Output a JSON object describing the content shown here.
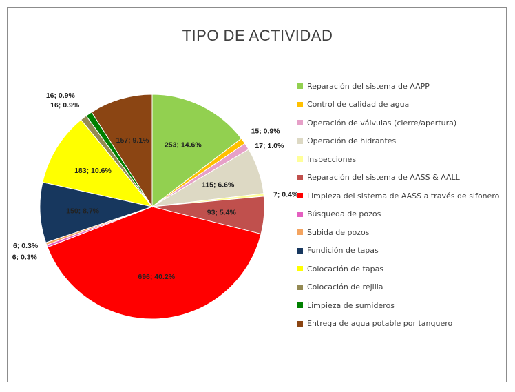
{
  "chart_data": {
    "type": "pie",
    "title": "TIPO DE ACTIVIDAD",
    "categories": [
      "Reparación del sistema de AAPP",
      "Control de calidad de agua",
      "Operación de válvulas (cierre/apertura)",
      "Operación de hidrantes",
      "Inspecciones",
      "Reparación del sistema de AASS & AALL",
      "Limpieza del sistema de AASS a través de sifonero",
      "Búsqueda de pozos",
      "Subida de pozos",
      "Fundición de tapas",
      "Colocación de tapas",
      "Colocación de rejilla",
      "Limpieza de sumideros",
      "Entrega de agua potable por tanquero"
    ],
    "values": [
      253,
      15,
      17,
      115,
      7,
      93,
      696,
      6,
      6,
      150,
      183,
      16,
      16,
      157
    ],
    "data_labels": [
      "253; 14.6%",
      "15; 0.9%",
      "17; 1.0%",
      "115; 6.6%",
      "7; 0.4%",
      "93; 5.4%",
      "696; 40.2%",
      "6; 0.3%",
      "6; 0.3%",
      "150; 8.7%",
      "183; 10.6%",
      "16; 0.9%",
      "16; 0.9%",
      "157; 9.1%"
    ],
    "colors": [
      "#92d050",
      "#ffc000",
      "#e6a0c8",
      "#ddd9c4",
      "#ffff99",
      "#c0504d",
      "#ff0000",
      "#e45fc0",
      "#f4a460",
      "#17375e",
      "#ffff00",
      "#948a54",
      "#008000",
      "#8b4513"
    ],
    "legend": "right"
  }
}
